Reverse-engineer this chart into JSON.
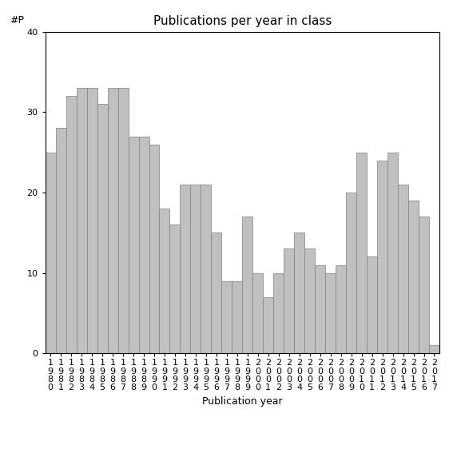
{
  "years": [
    "1980",
    "1981",
    "1982",
    "1983",
    "1984",
    "1985",
    "1986",
    "1987",
    "1988",
    "1989",
    "1990",
    "1991",
    "1992",
    "1993",
    "1994",
    "1995",
    "1996",
    "1997",
    "1998",
    "1999",
    "2000",
    "2001",
    "2002",
    "2003",
    "2004",
    "2005",
    "2006",
    "2007",
    "2008",
    "2009",
    "2010",
    "2011",
    "2012",
    "2013",
    "2014",
    "2015",
    "2016",
    "2017"
  ],
  "values": [
    25,
    28,
    32,
    33,
    33,
    31,
    33,
    33,
    27,
    27,
    26,
    18,
    16,
    21,
    21,
    21,
    15,
    9,
    9,
    17,
    10,
    7,
    10,
    13,
    15,
    13,
    11,
    10,
    11,
    20,
    25,
    12,
    24,
    25,
    21,
    19,
    17,
    1
  ],
  "bar_color": "#c0c0c0",
  "bar_edgecolor": "#808080",
  "title": "Publications per year in class",
  "xlabel": "Publication year",
  "ylabel": "#P",
  "ylim": [
    0,
    40
  ],
  "yticks": [
    0,
    10,
    20,
    30,
    40
  ],
  "title_fontsize": 11,
  "label_fontsize": 9,
  "tick_fontsize": 8,
  "bg_color": "#ffffff"
}
